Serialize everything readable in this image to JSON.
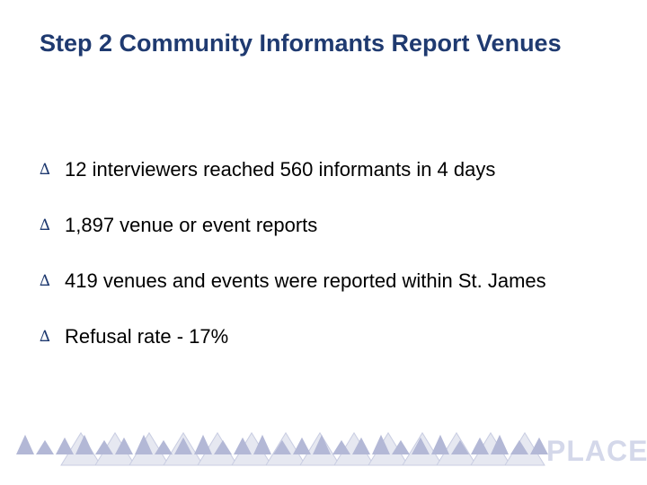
{
  "slide": {
    "title": "Step 2 Community Informants Report Venues",
    "bullets": [
      {
        "marker": "∆",
        "text": "12 interviewers reached 560 informants in 4 days"
      },
      {
        "marker": "∆",
        "text": "1,897 venue or event reports"
      },
      {
        "marker": "∆",
        "text": "419 venues and events were reported within St. James"
      },
      {
        "marker": "∆",
        "text": "Refusal rate - 17%"
      }
    ]
  },
  "footer": {
    "logo_text": "PLACE",
    "colors": {
      "dark_triangle": "#b3b8d6",
      "light_triangle": "#e6e8f1",
      "logo": "#d4d8ea"
    }
  }
}
